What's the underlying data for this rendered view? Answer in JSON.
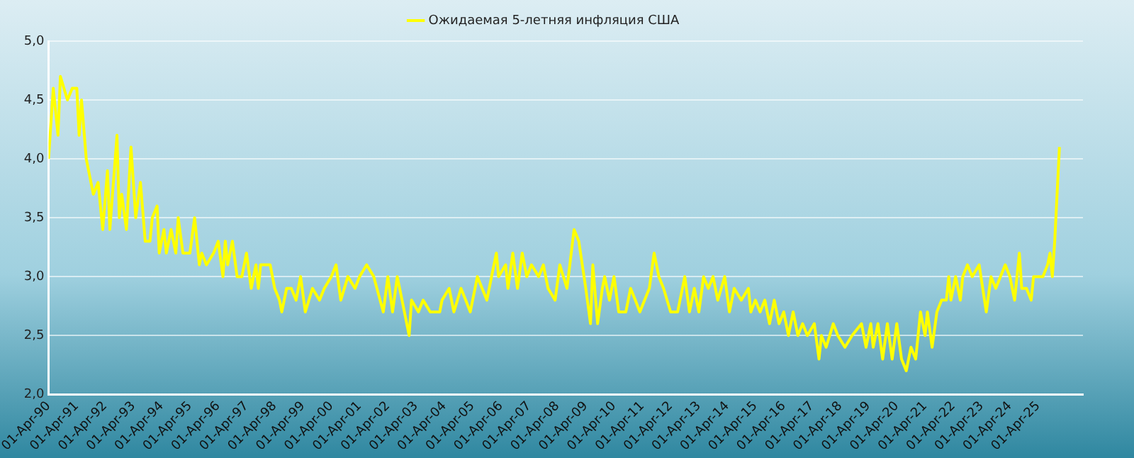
{
  "chart_data": {
    "type": "line",
    "x": [
      "1990-04",
      "1990-06",
      "1990-08",
      "1990-09",
      "1990-12",
      "1991-02",
      "1991-04",
      "1991-05",
      "1991-06",
      "1991-08",
      "1991-10",
      "1991-11",
      "1992-01",
      "1992-03",
      "1992-05",
      "1992-06",
      "1992-09",
      "1992-10",
      "1992-11",
      "1993-01",
      "1993-03",
      "1993-05",
      "1993-07",
      "1993-09",
      "1993-11",
      "1993-12",
      "1994-02",
      "1994-03",
      "1994-05",
      "1994-06",
      "1994-08",
      "1994-10",
      "1994-11",
      "1995-01",
      "1995-04",
      "1995-06",
      "1995-08",
      "1995-09",
      "1995-11",
      "1996-02",
      "1996-04",
      "1996-06",
      "1996-07",
      "1996-08",
      "1996-10",
      "1996-12",
      "1997-02",
      "1997-04",
      "1997-06",
      "1997-08",
      "1997-09",
      "1997-10",
      "1997-12",
      "1998-02",
      "1998-04",
      "1998-06",
      "1998-07",
      "1998-09",
      "1998-11",
      "1999-01",
      "1999-03",
      "1999-05",
      "1999-08",
      "1999-11",
      "2000-01",
      "2000-04",
      "2000-06",
      "2000-08",
      "2000-11",
      "2001-02",
      "2001-04",
      "2001-07",
      "2001-10",
      "2002-02",
      "2002-04",
      "2002-06",
      "2002-08",
      "2002-11",
      "2003-01",
      "2003-02",
      "2003-05",
      "2003-07",
      "2003-10",
      "2004-02",
      "2004-03",
      "2004-06",
      "2004-08",
      "2004-11",
      "2005-01",
      "2005-03",
      "2005-06",
      "2005-08",
      "2005-10",
      "2005-12",
      "2006-02",
      "2006-03",
      "2006-06",
      "2006-07",
      "2006-09",
      "2006-11",
      "2007-01",
      "2007-03",
      "2007-05",
      "2007-08",
      "2007-10",
      "2007-12",
      "2008-03",
      "2008-05",
      "2008-08",
      "2008-11",
      "2009-01",
      "2009-04",
      "2009-06",
      "2009-07",
      "2009-09",
      "2009-11",
      "2009-12",
      "2010-02",
      "2010-04",
      "2010-06",
      "2010-09",
      "2010-11",
      "2011-01",
      "2011-03",
      "2011-05",
      "2011-07",
      "2011-09",
      "2011-11",
      "2012-01",
      "2012-04",
      "2012-07",
      "2012-10",
      "2012-12",
      "2013-02",
      "2013-04",
      "2013-06",
      "2013-08",
      "2013-10",
      "2013-12",
      "2014-03",
      "2014-05",
      "2014-07",
      "2014-10",
      "2015-01",
      "2015-02",
      "2015-04",
      "2015-06",
      "2015-08",
      "2015-10",
      "2015-12",
      "2016-02",
      "2016-04",
      "2016-06",
      "2016-08",
      "2016-10",
      "2016-12",
      "2017-02",
      "2017-05",
      "2017-07",
      "2017-08",
      "2017-10",
      "2018-01",
      "2018-03",
      "2018-06",
      "2018-09",
      "2019-01",
      "2019-03",
      "2019-05",
      "2019-06",
      "2019-08",
      "2019-10",
      "2019-12",
      "2020-02",
      "2020-04",
      "2020-06",
      "2020-08",
      "2020-10",
      "2020-12",
      "2021-02",
      "2021-04",
      "2021-05",
      "2021-07",
      "2021-09",
      "2021-11",
      "2022-01",
      "2022-02",
      "2022-03",
      "2022-05",
      "2022-07",
      "2022-08",
      "2022-10",
      "2022-12",
      "2023-03",
      "2023-06",
      "2023-08",
      "2023-10",
      "2024-02",
      "2024-04",
      "2024-06",
      "2024-08",
      "2024-09",
      "2024-11",
      "2025-01",
      "2025-02",
      "2025-06",
      "2025-08",
      "2025-09",
      "2025-10",
      "2025-11",
      "2026-01"
    ],
    "series": [
      {
        "name": "Ожидаемая 5-летняя инфляция США",
        "color": "#ffff00",
        "values": [
          4.0,
          4.6,
          4.2,
          4.7,
          4.5,
          4.6,
          4.6,
          4.2,
          4.5,
          4.0,
          3.8,
          3.7,
          3.8,
          3.4,
          3.9,
          3.4,
          4.2,
          3.5,
          3.7,
          3.4,
          4.1,
          3.5,
          3.8,
          3.3,
          3.3,
          3.5,
          3.6,
          3.2,
          3.4,
          3.2,
          3.4,
          3.2,
          3.5,
          3.2,
          3.2,
          3.5,
          3.1,
          3.2,
          3.1,
          3.2,
          3.3,
          3.0,
          3.3,
          3.1,
          3.3,
          3.0,
          3.0,
          3.2,
          2.9,
          3.1,
          2.9,
          3.1,
          3.1,
          3.1,
          2.9,
          2.8,
          2.7,
          2.9,
          2.9,
          2.8,
          3.0,
          2.7,
          2.9,
          2.8,
          2.9,
          3.0,
          3.1,
          2.8,
          3.0,
          2.9,
          3.0,
          3.1,
          3.0,
          2.7,
          3.0,
          2.7,
          3.0,
          2.7,
          2.5,
          2.8,
          2.7,
          2.8,
          2.7,
          2.7,
          2.8,
          2.9,
          2.7,
          2.9,
          2.8,
          2.7,
          3.0,
          2.9,
          2.8,
          3.0,
          3.2,
          3.0,
          3.1,
          2.9,
          3.2,
          2.9,
          3.2,
          3.0,
          3.1,
          3.0,
          3.1,
          2.9,
          2.8,
          3.1,
          2.9,
          3.4,
          3.3,
          2.9,
          2.6,
          3.1,
          2.6,
          2.9,
          3.0,
          2.8,
          3.0,
          2.7,
          2.7,
          2.9,
          2.8,
          2.7,
          2.8,
          2.9,
          3.2,
          3.0,
          2.9,
          2.7,
          2.7,
          3.0,
          2.7,
          2.9,
          2.7,
          3.0,
          2.9,
          3.0,
          2.8,
          3.0,
          2.7,
          2.9,
          2.8,
          2.9,
          2.7,
          2.8,
          2.7,
          2.8,
          2.6,
          2.8,
          2.6,
          2.7,
          2.5,
          2.7,
          2.5,
          2.6,
          2.5,
          2.6,
          2.3,
          2.5,
          2.4,
          2.6,
          2.5,
          2.4,
          2.5,
          2.6,
          2.4,
          2.6,
          2.4,
          2.6,
          2.3,
          2.6,
          2.3,
          2.6,
          2.3,
          2.2,
          2.4,
          2.3,
          2.7,
          2.5,
          2.7,
          2.4,
          2.7,
          2.8,
          2.8,
          3.0,
          2.8,
          3.0,
          2.8,
          3.0,
          3.1,
          3.0,
          3.1,
          2.7,
          3.0,
          2.9,
          3.1,
          3.0,
          2.8,
          3.2,
          2.9,
          2.9,
          2.8,
          3.0,
          3.0,
          3.1,
          3.2,
          3.0,
          3.3,
          4.1
        ]
      }
    ],
    "xlim": [
      "1990-04",
      "2026-11"
    ],
    "xticks": [
      {
        "value": "1990-04",
        "label": "01-Apr-90"
      },
      {
        "value": "1991-04",
        "label": "01-Apr-91"
      },
      {
        "value": "1992-04",
        "label": "01-Apr-92"
      },
      {
        "value": "1993-04",
        "label": "01-Apr-93"
      },
      {
        "value": "1994-04",
        "label": "01-Apr-94"
      },
      {
        "value": "1995-04",
        "label": "01-Apr-95"
      },
      {
        "value": "1996-04",
        "label": "01-Apr-96"
      },
      {
        "value": "1997-04",
        "label": "01-Apr-97"
      },
      {
        "value": "1998-04",
        "label": "01-Apr-98"
      },
      {
        "value": "1999-04",
        "label": "01-Apr-99"
      },
      {
        "value": "2000-04",
        "label": "01-Apr-00"
      },
      {
        "value": "2001-04",
        "label": "01-Apr-01"
      },
      {
        "value": "2002-04",
        "label": "01-Apr-02"
      },
      {
        "value": "2003-04",
        "label": "01-Apr-03"
      },
      {
        "value": "2004-04",
        "label": "01-Apr-04"
      },
      {
        "value": "2005-04",
        "label": "01-Apr-05"
      },
      {
        "value": "2006-04",
        "label": "01-Apr-06"
      },
      {
        "value": "2007-04",
        "label": "01-Apr-07"
      },
      {
        "value": "2008-04",
        "label": "01-Apr-08"
      },
      {
        "value": "2009-04",
        "label": "01-Apr-09"
      },
      {
        "value": "2010-04",
        "label": "01-Apr-10"
      },
      {
        "value": "2011-04",
        "label": "01-Apr-11"
      },
      {
        "value": "2012-04",
        "label": "01-Apr-12"
      },
      {
        "value": "2013-04",
        "label": "01-Apr-13"
      },
      {
        "value": "2014-04",
        "label": "01-Apr-14"
      },
      {
        "value": "2015-04",
        "label": "01-Apr-15"
      },
      {
        "value": "2016-04",
        "label": "01-Apr-16"
      },
      {
        "value": "2017-04",
        "label": "01-Apr-17"
      },
      {
        "value": "2018-04",
        "label": "01-Apr-18"
      },
      {
        "value": "2019-04",
        "label": "01-Apr-19"
      },
      {
        "value": "2020-04",
        "label": "01-Apr-20"
      },
      {
        "value": "2021-04",
        "label": "01-Apr-21"
      },
      {
        "value": "2022-04",
        "label": "01-Apr-22"
      },
      {
        "value": "2023-04",
        "label": "01-Apr-23"
      },
      {
        "value": "2024-04",
        "label": "01-Apr-24"
      },
      {
        "value": "2025-04",
        "label": "01-Apr-25"
      }
    ],
    "ylim": [
      2,
      5
    ],
    "yticks": [
      {
        "value": 2,
        "label": "2,0"
      },
      {
        "value": 2.5,
        "label": "2,5"
      },
      {
        "value": 3,
        "label": "3,0"
      },
      {
        "value": 3.5,
        "label": "3,5"
      },
      {
        "value": 4,
        "label": "4,0"
      },
      {
        "value": 4.5,
        "label": "4,5"
      },
      {
        "value": 5,
        "label": "5,0"
      }
    ],
    "grid": "y",
    "legend": "top",
    "marker": "none",
    "line_style": "solid"
  }
}
